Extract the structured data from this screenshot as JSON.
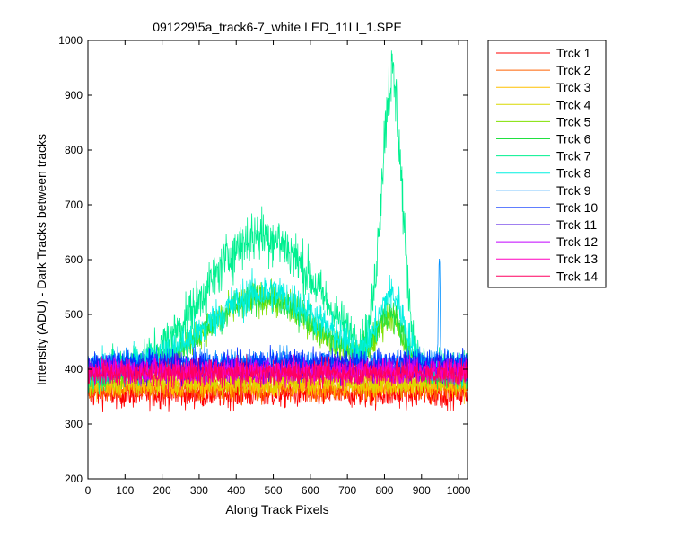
{
  "chart_data": {
    "type": "line",
    "title": "091229\\5a_track6-7_white LED_11LI_1.SPE",
    "xlabel": "Along Track Pixels",
    "ylabel": "Intensity (ADU) - Dark Tracks between tracks",
    "xlim": [
      0,
      1024
    ],
    "ylim": [
      200,
      1000
    ],
    "xticks": [
      "0",
      "100",
      "200",
      "300",
      "400",
      "500",
      "600",
      "700",
      "800",
      "900",
      "1000"
    ],
    "yticks": [
      "200",
      "300",
      "400",
      "500",
      "600",
      "700",
      "800",
      "900",
      "1000"
    ],
    "grid": false,
    "legend_position": "outside-right",
    "x_points": 1024,
    "series": [
      {
        "name": "Trck 1",
        "color": "#ff0000",
        "baseline": 355,
        "noise": 13,
        "features": []
      },
      {
        "name": "Trck 2",
        "color": "#ff6000",
        "baseline": 365,
        "noise": 12,
        "features": []
      },
      {
        "name": "Trck 3",
        "color": "#ffc000",
        "baseline": 372,
        "noise": 12,
        "features": []
      },
      {
        "name": "Trck 4",
        "color": "#d8d800",
        "baseline": 378,
        "noise": 12,
        "features": []
      },
      {
        "name": "Trck 5",
        "color": "#80e000",
        "baseline": 385,
        "noise": 12,
        "features": [
          {
            "center": 470,
            "width": 150,
            "height": 145
          },
          {
            "center": 815,
            "width": 35,
            "height": 100
          }
        ]
      },
      {
        "name": "Trck 6",
        "color": "#20e040",
        "baseline": 390,
        "noise": 12,
        "features": [
          {
            "center": 470,
            "width": 150,
            "height": 140
          },
          {
            "center": 815,
            "width": 40,
            "height": 100
          }
        ]
      },
      {
        "name": "Trck 7",
        "color": "#00f090",
        "baseline": 395,
        "noise": 18,
        "features": [
          {
            "center": 470,
            "width": 150,
            "height": 250
          },
          {
            "center": 820,
            "width": 28,
            "height": 520
          }
        ]
      },
      {
        "name": "Trck 8",
        "color": "#00f0e0",
        "baseline": 400,
        "noise": 15,
        "features": [
          {
            "center": 480,
            "width": 150,
            "height": 140
          },
          {
            "center": 820,
            "width": 35,
            "height": 125
          }
        ]
      },
      {
        "name": "Trck 9",
        "color": "#0090ff",
        "baseline": 410,
        "noise": 13,
        "features": [
          {
            "center": 948,
            "width": 2,
            "height": 210
          }
        ]
      },
      {
        "name": "Trck 10",
        "color": "#0030ff",
        "baseline": 412,
        "noise": 12,
        "features": []
      },
      {
        "name": "Trck 11",
        "color": "#4000e0",
        "baseline": 400,
        "noise": 12,
        "features": []
      },
      {
        "name": "Trck 12",
        "color": "#c000ff",
        "baseline": 398,
        "noise": 12,
        "features": []
      },
      {
        "name": "Trck 13",
        "color": "#ff00c0",
        "baseline": 395,
        "noise": 12,
        "features": []
      },
      {
        "name": "Trck 14",
        "color": "#ff0060",
        "baseline": 392,
        "noise": 12,
        "features": []
      }
    ]
  }
}
